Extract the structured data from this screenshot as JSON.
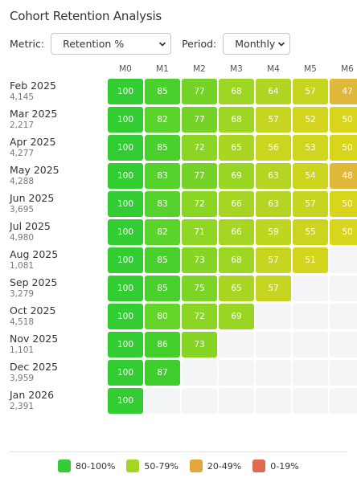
{
  "title": "Cohort Retention Analysis",
  "controls": {
    "metric_label": "Metric:",
    "metric_value": "Retention %",
    "period_label": "Period:",
    "period_value": "Monthly"
  },
  "columns": [
    "M0",
    "M1",
    "M2",
    "M3",
    "M4",
    "M5",
    "M6"
  ],
  "cohorts": [
    {
      "date": "Feb 2025",
      "size": "4,145",
      "values": [
        100,
        85,
        77,
        68,
        64,
        57,
        47
      ]
    },
    {
      "date": "Mar 2025",
      "size": "2,217",
      "values": [
        100,
        82,
        77,
        68,
        57,
        52,
        50
      ]
    },
    {
      "date": "Apr 2025",
      "size": "4,277",
      "values": [
        100,
        85,
        72,
        65,
        56,
        53,
        50
      ]
    },
    {
      "date": "May 2025",
      "size": "4,288",
      "values": [
        100,
        83,
        77,
        69,
        63,
        54,
        48
      ]
    },
    {
      "date": "Jun 2025",
      "size": "3,695",
      "values": [
        100,
        83,
        72,
        66,
        63,
        57,
        50
      ]
    },
    {
      "date": "Jul 2025",
      "size": "4,980",
      "values": [
        100,
        82,
        71,
        66,
        59,
        55,
        50
      ]
    },
    {
      "date": "Aug 2025",
      "size": "1,081",
      "values": [
        100,
        85,
        73,
        68,
        57,
        51
      ]
    },
    {
      "date": "Sep 2025",
      "size": "3,279",
      "values": [
        100,
        85,
        75,
        65,
        57
      ]
    },
    {
      "date": "Oct 2025",
      "size": "4,518",
      "values": [
        100,
        80,
        72,
        69
      ]
    },
    {
      "date": "Nov 2025",
      "size": "1,101",
      "values": [
        100,
        86,
        73
      ]
    },
    {
      "date": "Dec 2025",
      "size": "3,959",
      "values": [
        100,
        87
      ]
    },
    {
      "date": "Jan 2026",
      "size": "2,391",
      "values": [
        100
      ]
    }
  ],
  "legend": [
    {
      "label": "80-100%",
      "color": "#33cc33"
    },
    {
      "label": "50-79%",
      "color": "#a5d624"
    },
    {
      "label": "20-49%",
      "color": "#e0a83a"
    },
    {
      "label": "0-19%",
      "color": "#e06a50"
    }
  ]
}
